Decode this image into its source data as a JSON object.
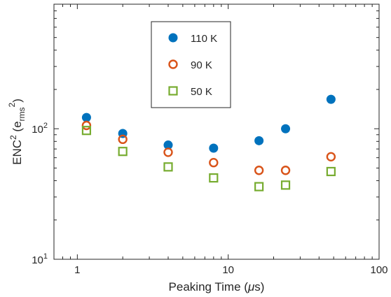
{
  "chart_data": {
    "type": "scatter",
    "title": "",
    "xlabel": "Peaking Time (μs)",
    "ylabel": "ENC² (e_rms²)",
    "xscale": "log",
    "yscale": "log",
    "xlim": [
      0.7,
      100
    ],
    "ylim": [
      10,
      900
    ],
    "x_ticks": [
      1,
      10,
      100
    ],
    "x_tick_labels": [
      "1",
      "10",
      "100"
    ],
    "y_ticks": [
      10,
      100
    ],
    "grid": false,
    "legend_position": "top-center",
    "series": [
      {
        "name": "110 K",
        "marker": "filled-circle",
        "color": "#0072BD",
        "x": [
          1.15,
          2.0,
          4.0,
          8.0,
          16.0,
          24.0,
          48.0
        ],
        "y": [
          122,
          92,
          75,
          71,
          81,
          100,
          168
        ]
      },
      {
        "name": "90 K",
        "marker": "open-circle",
        "color": "#D95319",
        "x": [
          1.15,
          2.0,
          4.0,
          8.0,
          16.0,
          24.0,
          48.0
        ],
        "y": [
          106,
          83,
          66,
          55,
          48,
          48,
          61
        ]
      },
      {
        "name": "50 K",
        "marker": "open-square",
        "color": "#77AC30",
        "x": [
          1.15,
          2.0,
          4.0,
          8.0,
          16.0,
          24.0,
          48.0
        ],
        "y": [
          97,
          67,
          51,
          42,
          36,
          37,
          47
        ]
      }
    ]
  }
}
